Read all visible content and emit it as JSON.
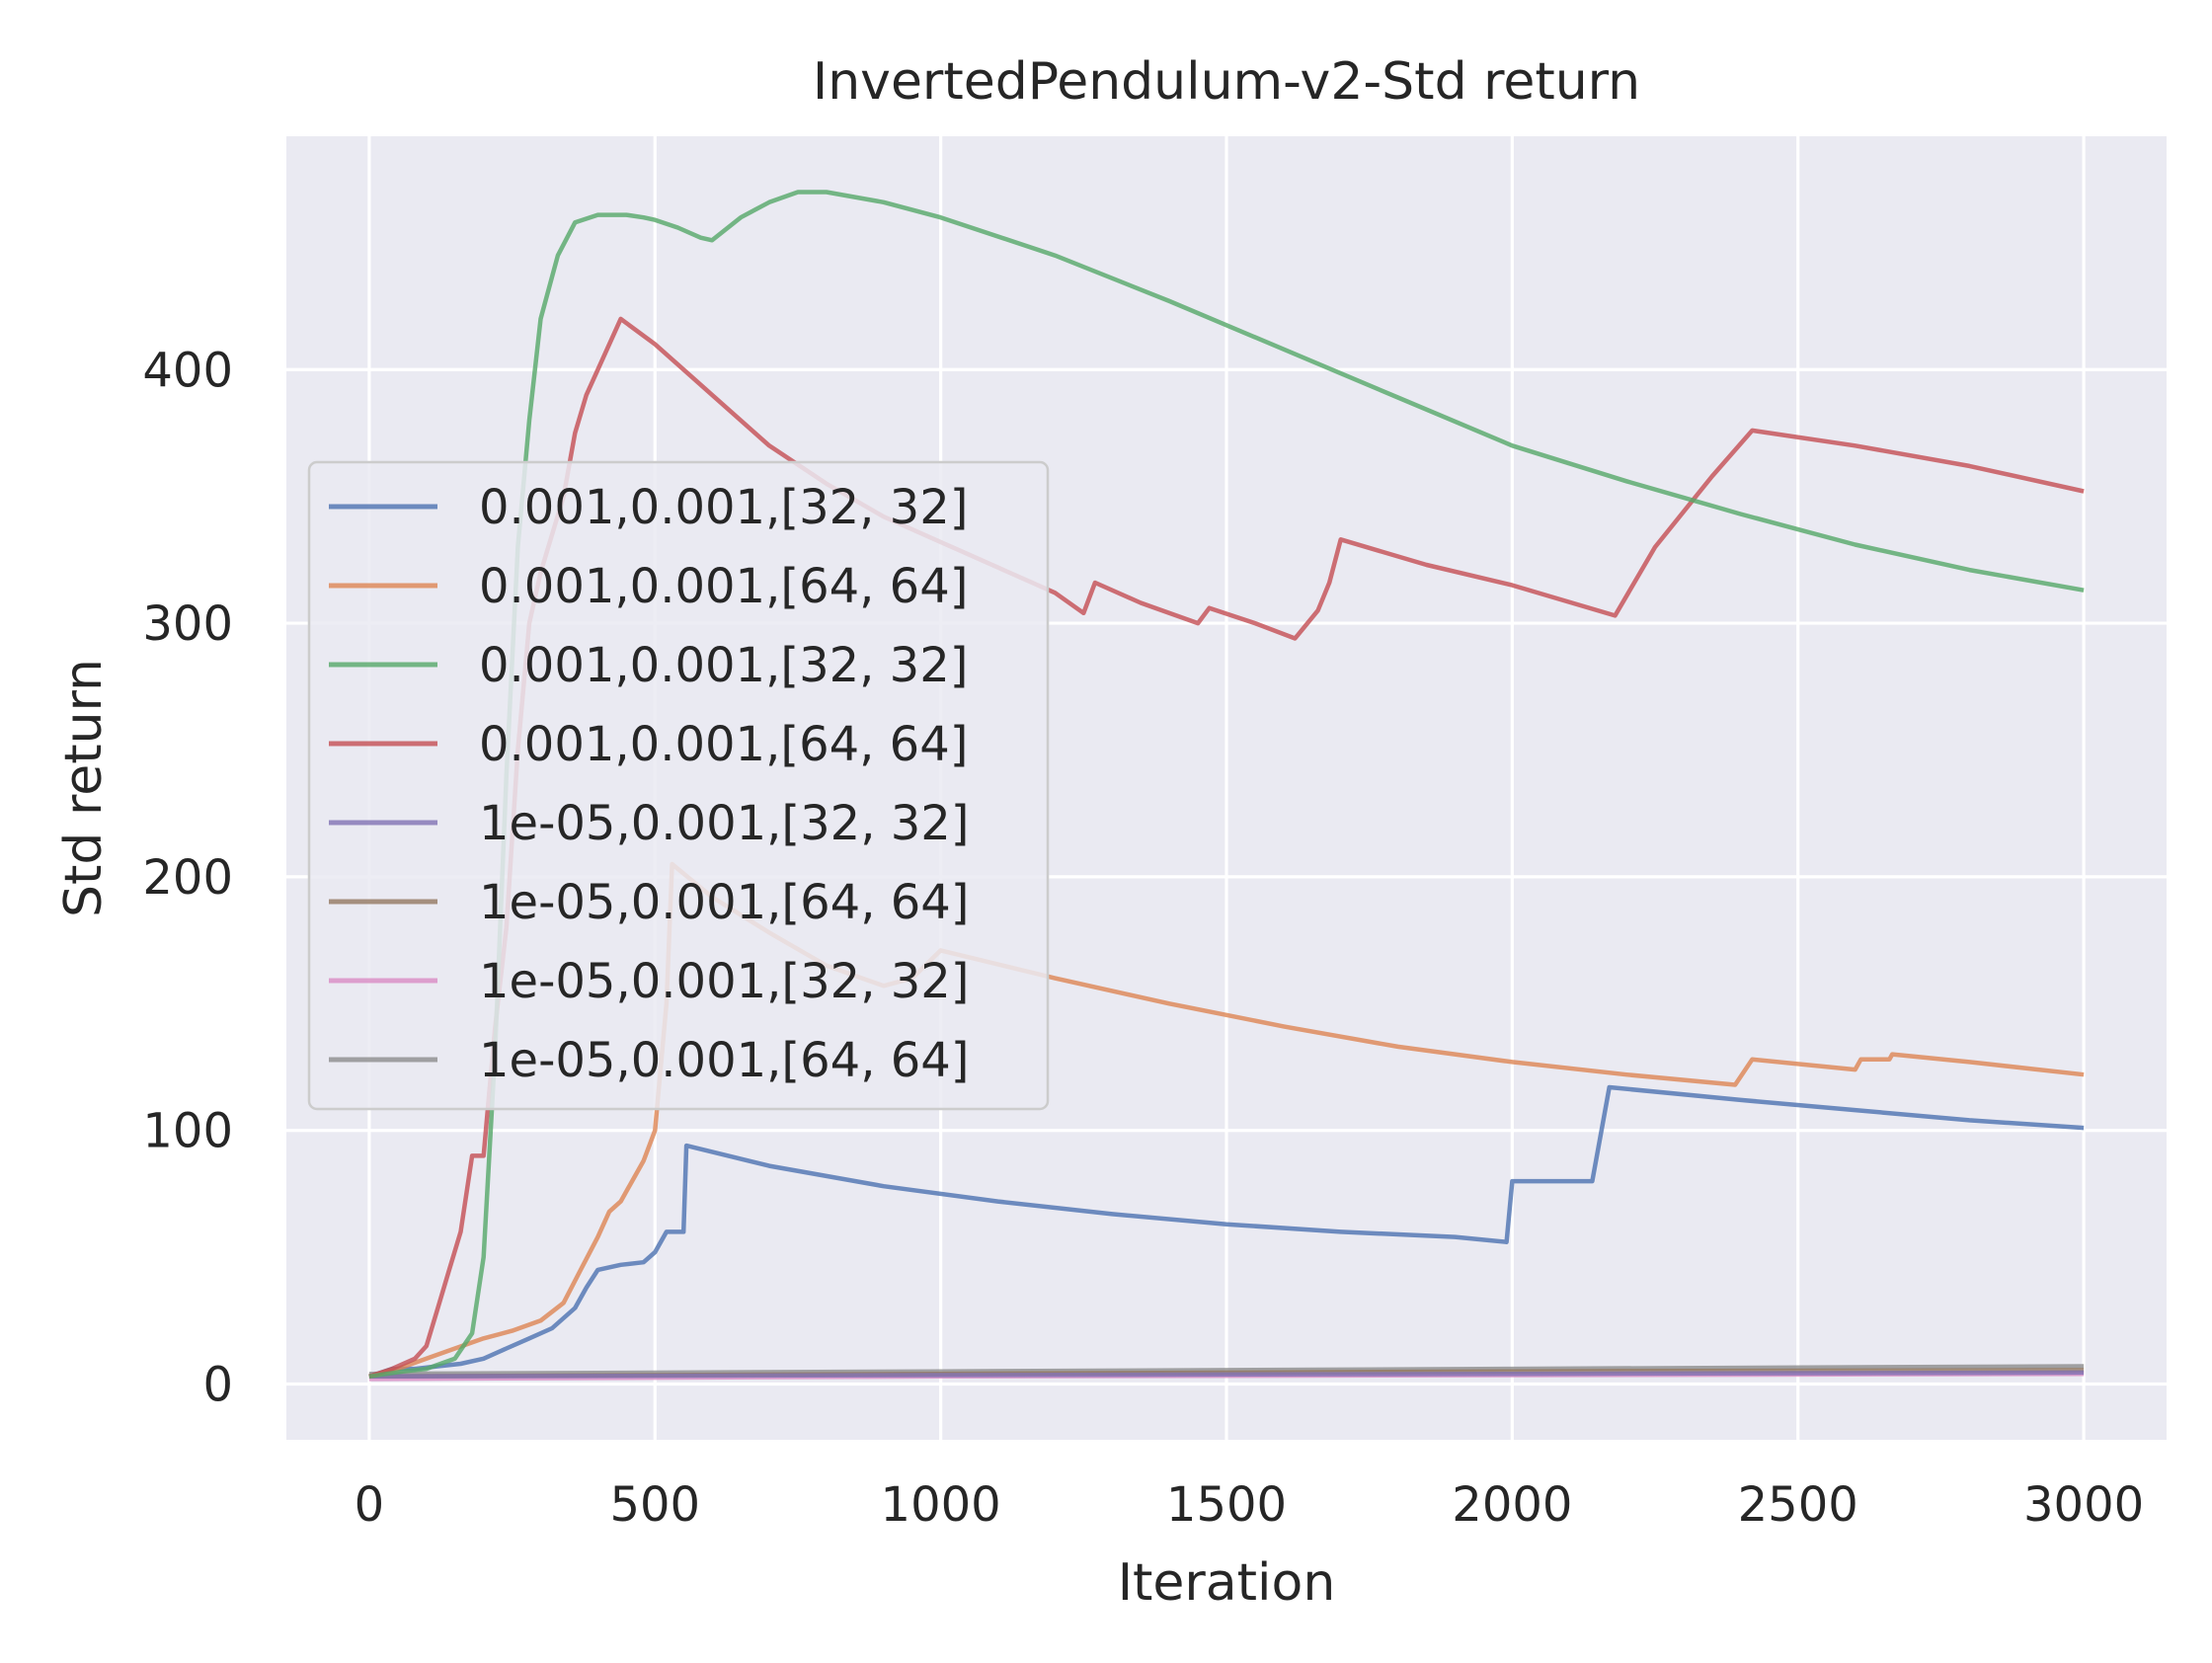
{
  "chart_data": {
    "type": "line",
    "title": "InvertedPendulum-v2-Std return",
    "xlabel": "Iteration",
    "ylabel": "Std return",
    "xlim": [
      -145,
      3145
    ],
    "ylim": [
      -22,
      492
    ],
    "xticks": [
      0,
      500,
      1000,
      1500,
      2000,
      2500,
      3000
    ],
    "yticks": [
      0,
      100,
      200,
      300,
      400
    ],
    "grid": true,
    "legend_position": "center-left",
    "background": "#EAEAF2",
    "series": [
      {
        "name": "0.001,0.001,[32, 32]",
        "color": "#4C72B0",
        "points": [
          [
            0,
            3
          ],
          [
            40,
            6
          ],
          [
            80,
            6
          ],
          [
            120,
            7
          ],
          [
            160,
            8
          ],
          [
            200,
            10
          ],
          [
            240,
            14
          ],
          [
            280,
            18
          ],
          [
            320,
            22
          ],
          [
            360,
            30
          ],
          [
            380,
            38
          ],
          [
            400,
            45
          ],
          [
            440,
            47
          ],
          [
            480,
            48
          ],
          [
            500,
            52
          ],
          [
            520,
            60
          ],
          [
            550,
            60
          ],
          [
            555,
            94
          ],
          [
            700,
            86
          ],
          [
            900,
            78
          ],
          [
            1100,
            72
          ],
          [
            1300,
            67
          ],
          [
            1500,
            63
          ],
          [
            1700,
            60
          ],
          [
            1900,
            58
          ],
          [
            1990,
            56
          ],
          [
            2000,
            80
          ],
          [
            2050,
            80
          ],
          [
            2140,
            80
          ],
          [
            2170,
            117
          ],
          [
            2400,
            112
          ],
          [
            2600,
            108
          ],
          [
            2800,
            104
          ],
          [
            3000,
            101
          ]
        ]
      },
      {
        "name": "0.001,0.001,[64, 64]",
        "color": "#DD8452",
        "points": [
          [
            0,
            3
          ],
          [
            50,
            6
          ],
          [
            100,
            10
          ],
          [
            150,
            14
          ],
          [
            200,
            18
          ],
          [
            250,
            21
          ],
          [
            300,
            25
          ],
          [
            340,
            32
          ],
          [
            370,
            45
          ],
          [
            400,
            58
          ],
          [
            420,
            68
          ],
          [
            440,
            72
          ],
          [
            460,
            80
          ],
          [
            480,
            88
          ],
          [
            500,
            100
          ],
          [
            520,
            150
          ],
          [
            530,
            205
          ],
          [
            600,
            192
          ],
          [
            700,
            178
          ],
          [
            800,
            165
          ],
          [
            900,
            157
          ],
          [
            950,
            160
          ],
          [
            1000,
            171
          ],
          [
            1200,
            160
          ],
          [
            1400,
            150
          ],
          [
            1600,
            141
          ],
          [
            1800,
            133
          ],
          [
            2000,
            127
          ],
          [
            2200,
            122
          ],
          [
            2390,
            118
          ],
          [
            2420,
            128
          ],
          [
            2600,
            124
          ],
          [
            2610,
            128
          ],
          [
            2660,
            128
          ],
          [
            2665,
            130
          ],
          [
            2800,
            127
          ],
          [
            3000,
            122
          ]
        ]
      },
      {
        "name": "0.001,0.001,[32, 32]",
        "color": "#55A868",
        "points": [
          [
            0,
            3
          ],
          [
            60,
            5
          ],
          [
            100,
            6
          ],
          [
            150,
            10
          ],
          [
            180,
            20
          ],
          [
            200,
            50
          ],
          [
            220,
            130
          ],
          [
            240,
            240
          ],
          [
            260,
            330
          ],
          [
            280,
            380
          ],
          [
            300,
            420
          ],
          [
            330,
            445
          ],
          [
            360,
            458
          ],
          [
            400,
            461
          ],
          [
            430,
            461
          ],
          [
            450,
            461
          ],
          [
            480,
            460
          ],
          [
            500,
            459
          ],
          [
            540,
            456
          ],
          [
            580,
            452
          ],
          [
            600,
            451
          ],
          [
            650,
            460
          ],
          [
            700,
            466
          ],
          [
            750,
            470
          ],
          [
            800,
            470
          ],
          [
            900,
            466
          ],
          [
            1000,
            460
          ],
          [
            1200,
            445
          ],
          [
            1400,
            427
          ],
          [
            1600,
            408
          ],
          [
            1800,
            389
          ],
          [
            2000,
            370
          ],
          [
            2200,
            356
          ],
          [
            2400,
            343
          ],
          [
            2600,
            331
          ],
          [
            2800,
            321
          ],
          [
            3000,
            313
          ]
        ]
      },
      {
        "name": "0.001,0.001,[64, 64]",
        "color": "#C44E52",
        "points": [
          [
            0,
            3
          ],
          [
            40,
            6
          ],
          [
            80,
            10
          ],
          [
            100,
            15
          ],
          [
            120,
            30
          ],
          [
            140,
            45
          ],
          [
            160,
            60
          ],
          [
            180,
            90
          ],
          [
            200,
            90
          ],
          [
            220,
            140
          ],
          [
            240,
            180
          ],
          [
            260,
            250
          ],
          [
            280,
            300
          ],
          [
            300,
            320
          ],
          [
            340,
            350
          ],
          [
            360,
            375
          ],
          [
            380,
            390
          ],
          [
            400,
            400
          ],
          [
            440,
            420
          ],
          [
            500,
            410
          ],
          [
            600,
            390
          ],
          [
            700,
            370
          ],
          [
            800,
            355
          ],
          [
            900,
            342
          ],
          [
            1000,
            332
          ],
          [
            1100,
            322
          ],
          [
            1200,
            312
          ],
          [
            1250,
            304
          ],
          [
            1270,
            316
          ],
          [
            1350,
            308
          ],
          [
            1450,
            300
          ],
          [
            1470,
            306
          ],
          [
            1550,
            300
          ],
          [
            1620,
            294
          ],
          [
            1660,
            305
          ],
          [
            1680,
            316
          ],
          [
            1700,
            333
          ],
          [
            1850,
            323
          ],
          [
            2000,
            315
          ],
          [
            2180,
            303
          ],
          [
            2250,
            330
          ],
          [
            2350,
            358
          ],
          [
            2420,
            376
          ],
          [
            2600,
            370
          ],
          [
            2800,
            362
          ],
          [
            3000,
            352
          ]
        ]
      },
      {
        "name": "1e-05,0.001,[32, 32]",
        "color": "#8172B3",
        "points": [
          [
            0,
            3
          ],
          [
            1000,
            3.5
          ],
          [
            2000,
            4
          ],
          [
            3000,
            4.5
          ]
        ]
      },
      {
        "name": "1e-05,0.001,[64, 64]",
        "color": "#937860",
        "points": [
          [
            0,
            3
          ],
          [
            1000,
            4
          ],
          [
            2000,
            5
          ],
          [
            3000,
            5.5
          ]
        ]
      },
      {
        "name": "1e-05,0.001,[32, 32]",
        "color": "#DA8BC3",
        "points": [
          [
            0,
            2
          ],
          [
            1000,
            3
          ],
          [
            2000,
            3.5
          ],
          [
            3000,
            4
          ]
        ]
      },
      {
        "name": "1e-05,0.001,[64, 64]",
        "color": "#8C8C8C",
        "points": [
          [
            0,
            4
          ],
          [
            1000,
            5
          ],
          [
            2000,
            6
          ],
          [
            3000,
            7
          ]
        ]
      }
    ]
  }
}
